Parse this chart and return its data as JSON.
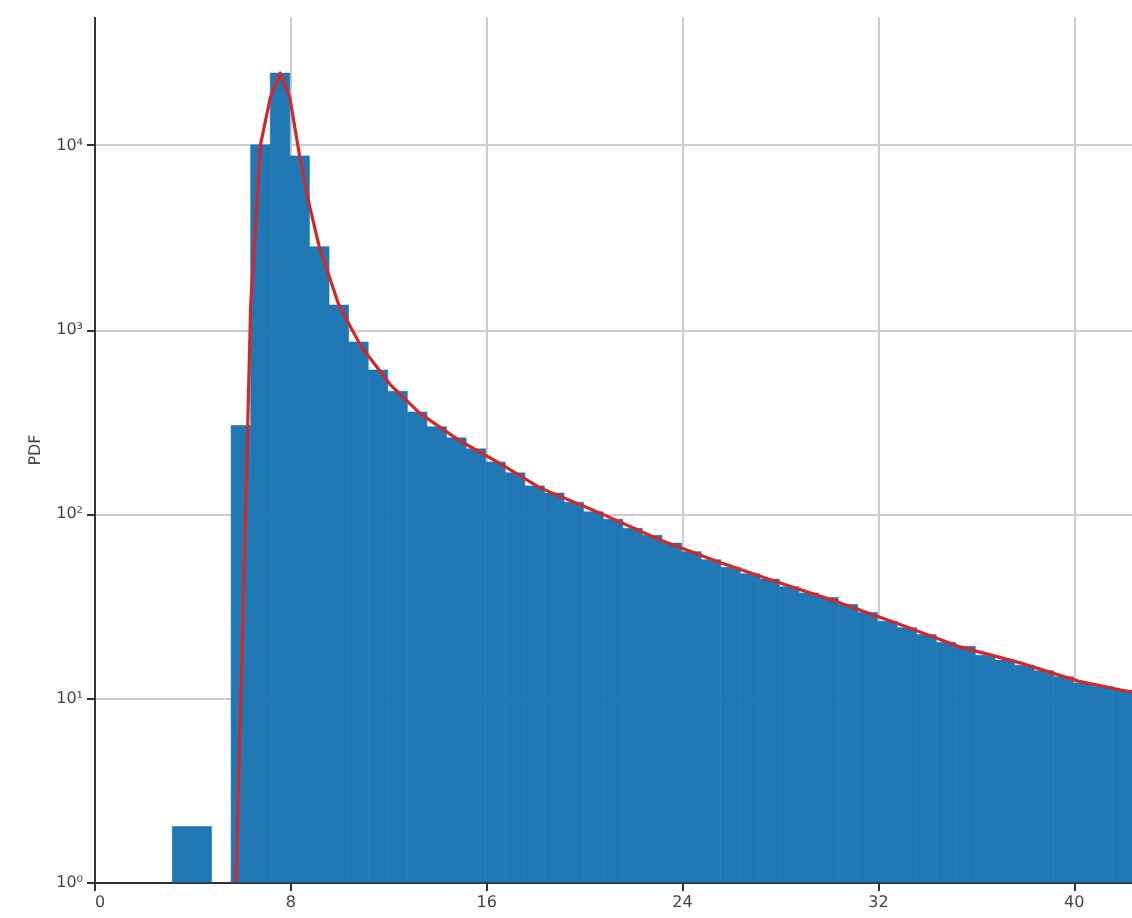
{
  "chart_data": {
    "type": "histogram",
    "ylabel": "PDF",
    "log": "y",
    "grid": true,
    "xlim": [
      0,
      42.4
    ],
    "xticks": [
      0,
      8,
      16,
      24,
      32,
      40
    ],
    "ylim": [
      1,
      50000
    ],
    "yticks": [
      {
        "value": 1,
        "label": "10⁰"
      },
      {
        "value": 10,
        "label": "10¹"
      },
      {
        "value": 100,
        "label": "10²"
      },
      {
        "value": 1000,
        "label": "10³"
      },
      {
        "value": 10000,
        "label": "10⁴"
      }
    ],
    "bins": [
      3.2,
      4.0,
      4.8,
      5.6,
      6.4,
      7.2,
      8.0,
      8.8,
      9.6,
      10.4,
      11.2,
      12.0,
      12.8,
      13.6,
      14.4,
      15.2,
      16.0,
      16.8,
      17.6,
      18.4,
      19.2,
      20.0,
      20.8,
      21.6,
      22.4,
      23.2,
      24.0,
      24.8,
      25.6,
      26.4,
      27.2,
      28.0,
      28.8,
      29.6,
      30.4,
      31.2,
      32.0,
      32.8,
      33.6,
      34.4,
      35.2,
      36.0,
      36.8,
      37.6,
      38.4,
      39.2,
      40.0,
      40.8,
      41.6,
      42.4
    ],
    "series": [
      {
        "color": "#1f77b4",
        "values": [
          2,
          2,
          null,
          300,
          10000,
          24500,
          8700,
          2800,
          1350,
          850,
          600,
          460,
          355,
          295,
          257,
          224,
          190,
          166,
          141,
          129,
          115,
          102,
          93,
          83,
          76,
          69,
          62,
          56,
          51,
          47,
          44,
          40,
          37,
          35,
          32,
          29,
          26,
          24,
          22,
          20,
          19,
          17,
          16,
          15,
          14,
          13,
          12,
          11.5,
          11
        ]
      },
      {
        "type": "line",
        "color": "#d62728",
        "x": [
          5.8,
          6.1,
          6.4,
          6.8,
          7.2,
          7.6,
          8.0,
          8.4,
          8.8,
          9.2,
          10.0,
          10.9,
          12.1,
          13.3,
          14.9,
          16.6,
          18.2,
          20.7,
          23.1,
          25.6,
          28.0,
          30.4,
          32.9,
          35.3,
          37.8,
          40.2,
          42.4
        ],
        "values": [
          1,
          33,
          1350,
          10000,
          18000,
          24500,
          18000,
          8700,
          4700,
          2800,
          1350,
          810,
          500,
          350,
          250,
          186,
          138,
          100,
          72,
          54,
          42,
          33,
          25,
          19,
          15.5,
          12.3,
          10.7
        ]
      }
    ]
  }
}
